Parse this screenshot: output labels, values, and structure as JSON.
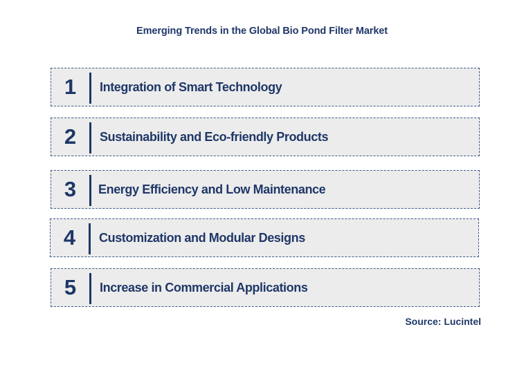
{
  "title": "Emerging Trends in the Global Bio Pond Filter Market",
  "trends": [
    {
      "number": "1",
      "label": "Integration of Smart Technology"
    },
    {
      "number": "2",
      "label": "Sustainability and Eco-friendly Products"
    },
    {
      "number": "3",
      "label": "Energy Efficiency and Low Maintenance"
    },
    {
      "number": "4",
      "label": "Customization and Modular Designs"
    },
    {
      "number": "5",
      "label": "Increase in Commercial Applications"
    }
  ],
  "source": "Source: Lucintel",
  "colors": {
    "text": "#1f3768",
    "box_fill": "#ececec",
    "box_border": "#3d5a8a"
  }
}
